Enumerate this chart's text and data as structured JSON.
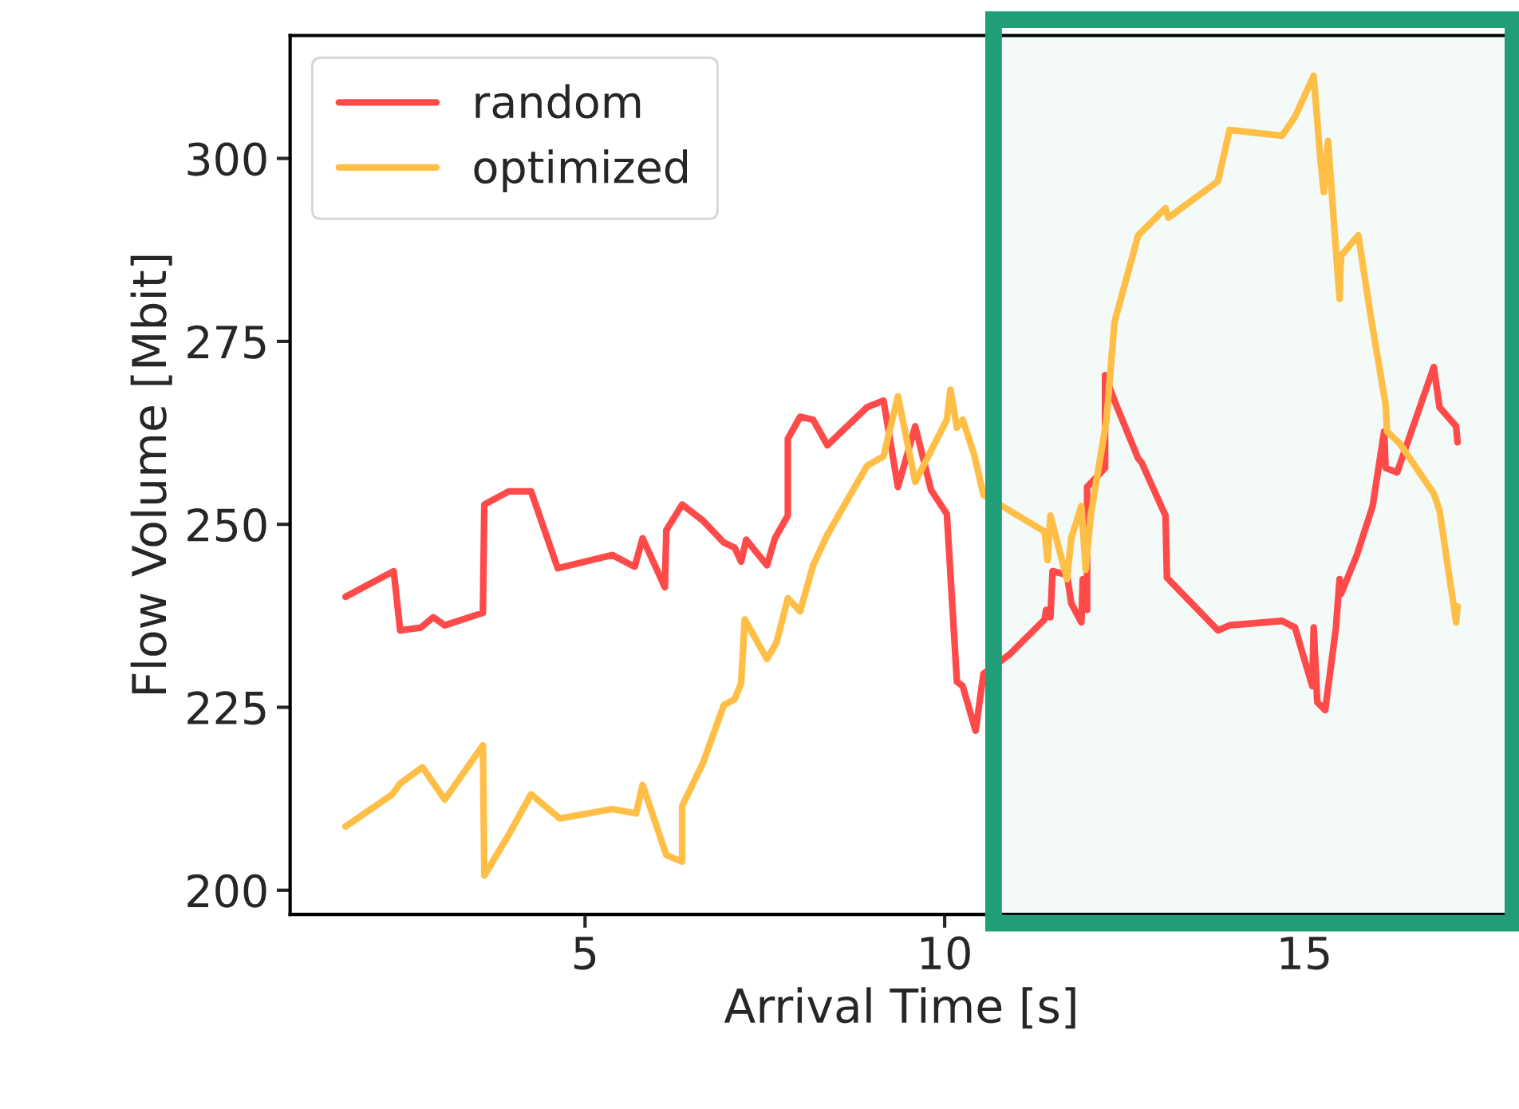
{
  "chart_data": {
    "type": "line",
    "xlabel": "Arrival Time [s]",
    "ylabel": "Flow Volume [Mbit]",
    "xlim": [
      0.9,
      17.9
    ],
    "xticks": [
      5,
      10,
      15
    ],
    "ylim": [
      196.7,
      316.8
    ],
    "yticks": [
      200,
      225,
      250,
      275,
      300
    ],
    "grid": false,
    "legend": "top left",
    "line_style": "solid",
    "marker": "none",
    "bands": [
      {
        "axis": "x",
        "from": 10.68,
        "to": 17.9,
        "label": null,
        "color": "#1f9e77"
      }
    ],
    "series": [
      {
        "name": "random",
        "color": "#ff4a4a",
        "x": [
          1.67,
          2.34,
          2.43,
          2.72,
          2.89,
          3.05,
          3.58,
          3.6,
          3.94,
          4.25,
          4.62,
          5.38,
          5.69,
          5.8,
          6.11,
          6.13,
          6.35,
          6.64,
          6.93,
          7.08,
          7.17,
          7.24,
          7.53,
          7.64,
          7.82,
          7.82,
          7.99,
          8.17,
          8.37,
          8.92,
          9.15,
          9.35,
          9.59,
          9.81,
          10.03,
          10.17,
          10.25,
          10.43,
          10.54,
          10.9,
          11.39,
          11.41,
          11.47,
          11.5,
          11.7,
          11.76,
          11.9,
          11.92,
          11.98,
          11.98,
          12.23,
          12.23,
          12.36,
          12.69,
          12.74,
          13.07,
          13.09,
          13.8,
          13.96,
          14.69,
          14.87,
          15.11,
          15.13,
          15.18,
          15.22,
          15.29,
          15.44,
          15.49,
          15.51,
          15.73,
          15.95,
          16.11,
          16.13,
          16.29,
          16.8,
          16.88,
          17.11,
          17.13
        ],
        "values": [
          240.1,
          243.6,
          235.5,
          235.9,
          237.3,
          236.2,
          237.9,
          252.7,
          254.5,
          254.5,
          244.0,
          245.8,
          244.2,
          248.1,
          241.4,
          249.2,
          252.7,
          250.5,
          247.5,
          246.8,
          244.9,
          247.9,
          244.4,
          248.1,
          251.2,
          261.7,
          264.7,
          264.3,
          260.8,
          266.0,
          266.9,
          255.1,
          263.4,
          254.7,
          251.4,
          228.5,
          227.9,
          221.8,
          229.6,
          232.2,
          237.0,
          238.3,
          237.3,
          243.6,
          243.1,
          239.2,
          236.6,
          242.5,
          238.3,
          255.1,
          257.7,
          270.4,
          266.9,
          259.0,
          258.4,
          251.2,
          242.7,
          235.5,
          236.2,
          236.8,
          235.9,
          227.9,
          235.9,
          225.7,
          225.3,
          224.6,
          235.9,
          242.5,
          240.5,
          245.8,
          252.5,
          262.7,
          257.7,
          257.1,
          271.5,
          266.0,
          263.4,
          261.2
        ]
      },
      {
        "name": "optimized",
        "color": "#ffbf47",
        "x": [
          1.67,
          2.32,
          2.43,
          2.74,
          3.05,
          3.58,
          3.6,
          3.94,
          4.25,
          4.65,
          5.38,
          5.71,
          5.8,
          6.13,
          6.35,
          6.35,
          6.64,
          6.93,
          7.08,
          7.17,
          7.22,
          7.53,
          7.66,
          7.82,
          7.99,
          8.17,
          8.37,
          8.92,
          9.15,
          9.35,
          9.59,
          10.03,
          10.08,
          10.17,
          10.25,
          10.41,
          10.54,
          10.9,
          11.39,
          11.43,
          11.47,
          11.7,
          11.76,
          11.9,
          11.96,
          12.03,
          12.25,
          12.36,
          12.69,
          13.07,
          13.11,
          13.8,
          13.96,
          14.69,
          14.87,
          15.13,
          15.22,
          15.27,
          15.33,
          15.42,
          15.49,
          15.51,
          15.75,
          15.93,
          16.13,
          16.15,
          16.33,
          16.8,
          16.88,
          17.11,
          17.13
        ],
        "values": [
          208.7,
          213.1,
          214.6,
          216.8,
          212.4,
          219.8,
          202.0,
          207.6,
          213.1,
          209.8,
          211.1,
          210.5,
          214.4,
          204.8,
          203.9,
          211.5,
          217.4,
          225.3,
          226.1,
          228.3,
          237.0,
          231.6,
          233.8,
          239.9,
          238.1,
          244.4,
          248.6,
          258.0,
          259.3,
          267.5,
          255.8,
          264.3,
          268.4,
          263.2,
          264.3,
          259.5,
          254.0,
          251.9,
          249.0,
          245.1,
          251.2,
          242.5,
          248.1,
          252.5,
          243.8,
          251.2,
          264.3,
          277.6,
          289.5,
          293.2,
          291.9,
          296.9,
          303.9,
          303.1,
          305.7,
          311.3,
          300.2,
          295.4,
          302.4,
          290.0,
          280.8,
          286.7,
          289.5,
          278.0,
          266.4,
          262.7,
          261.0,
          254.2,
          251.9,
          236.6,
          238.8
        ]
      }
    ]
  }
}
